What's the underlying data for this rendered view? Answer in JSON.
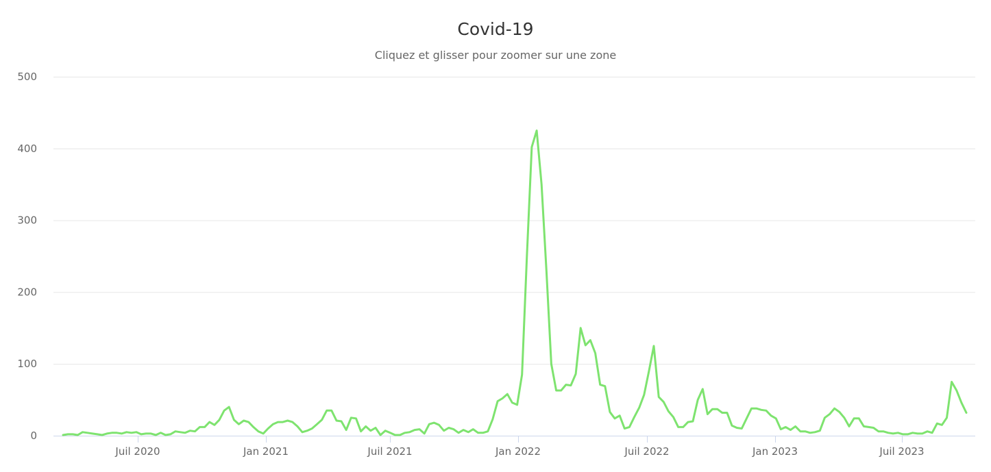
{
  "title": "Covid-19",
  "subtitle": "Cliquez et glisser pour zoomer sur une zone",
  "colors": {
    "series": "#7ee36f",
    "grid": "#e6e6e6",
    "axis": "#ccd6eb",
    "text": "#666666"
  },
  "chart_data": {
    "type": "line",
    "title": "Covid-19",
    "subtitle": "Cliquez et glisser pour zoomer sur une zone",
    "xlabel": "",
    "ylabel": "",
    "ylim": [
      0,
      500
    ],
    "yticks": [
      0,
      100,
      200,
      300,
      400,
      500
    ],
    "xticks": [
      "Juil 2020",
      "Jan 2021",
      "Juil 2021",
      "Jan 2022",
      "Juil 2022",
      "Jan 2023",
      "Juil 2023"
    ],
    "grid": true,
    "legend": "none",
    "x_start": "2020-03",
    "x_interval": "weekly",
    "series": [
      {
        "name": "Covid-19",
        "values": [
          1,
          2,
          2,
          1,
          5,
          4,
          3,
          2,
          1,
          3,
          4,
          4,
          3,
          5,
          4,
          5,
          2,
          3,
          3,
          1,
          4,
          1,
          2,
          6,
          5,
          4,
          7,
          6,
          12,
          12,
          19,
          15,
          22,
          35,
          40,
          22,
          16,
          21,
          19,
          12,
          6,
          3,
          10,
          16,
          19,
          19,
          21,
          19,
          13,
          5,
          7,
          10,
          16,
          22,
          35,
          35,
          21,
          20,
          8,
          25,
          24,
          6,
          13,
          7,
          11,
          1,
          7,
          4,
          1,
          1,
          4,
          5,
          8,
          9,
          3,
          16,
          18,
          15,
          7,
          11,
          9,
          4,
          8,
          5,
          9,
          4,
          4,
          6,
          23,
          48,
          52,
          58,
          46,
          43,
          85,
          250,
          402,
          425,
          350,
          230,
          100,
          63,
          63,
          71,
          70,
          86,
          150,
          126,
          133,
          115,
          71,
          69,
          33,
          24,
          28,
          10,
          12,
          26,
          39,
          57,
          90,
          125,
          54,
          47,
          34,
          26,
          12,
          12,
          19,
          20,
          50,
          65,
          30,
          37,
          37,
          32,
          32,
          14,
          11,
          10,
          24,
          38,
          38,
          36,
          35,
          28,
          24,
          9,
          12,
          8,
          13,
          6,
          6,
          4,
          5,
          7,
          25,
          30,
          38,
          33,
          25,
          13,
          24,
          24,
          13,
          12,
          11,
          6,
          6,
          4,
          3,
          4,
          2,
          2,
          4,
          3,
          3,
          6,
          4,
          17,
          15,
          25,
          75,
          63,
          46,
          32
        ]
      }
    ]
  }
}
